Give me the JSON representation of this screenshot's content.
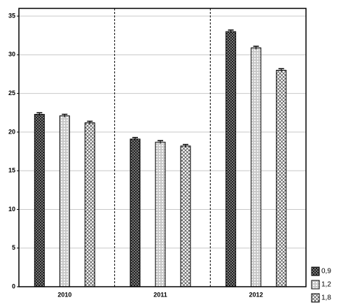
{
  "chart_data": {
    "type": "bar",
    "categories": [
      "2010",
      "2011",
      "2012"
    ],
    "series": [
      {
        "name": "0,9",
        "color": "#222222",
        "values": [
          22.3,
          19.1,
          33.0
        ],
        "errors": [
          0.2,
          0.2,
          0.2
        ]
      },
      {
        "name": "1,2",
        "color": "#9a9a9a",
        "values": [
          22.1,
          18.7,
          30.9
        ],
        "errors": [
          0.2,
          0.2,
          0.2
        ]
      },
      {
        "name": "1,8",
        "color": "#555555",
        "values": [
          21.2,
          18.2,
          28.0
        ],
        "errors": [
          0.2,
          0.2,
          0.2
        ]
      }
    ],
    "ylim": [
      0,
      36
    ],
    "yticks": [
      0,
      5,
      10,
      15,
      20,
      25,
      30,
      35
    ],
    "grid": true,
    "group_separators": true,
    "legend": "bottom-right"
  }
}
